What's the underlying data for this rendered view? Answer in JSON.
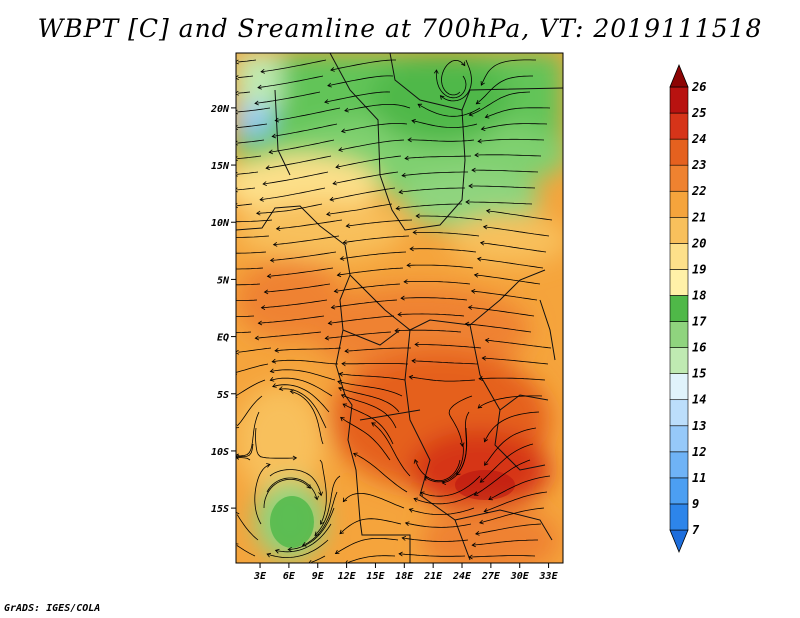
{
  "title": "WBPT [C] and Sreamline at 700hPa, VT: 2019111518",
  "credit": "GrADS: IGES/COLA",
  "map": {
    "lon_labels": [
      "3E",
      "6E",
      "9E",
      "12E",
      "15E",
      "18E",
      "21E",
      "24E",
      "27E",
      "30E",
      "33E"
    ],
    "lon_values": [
      3,
      6,
      9,
      12,
      15,
      18,
      21,
      24,
      27,
      30,
      33
    ],
    "lat_labels": [
      "20N",
      "15N",
      "10N",
      "5N",
      "EQ",
      "5S",
      "10S",
      "15S"
    ],
    "lat_values": [
      20,
      15,
      10,
      5,
      0,
      -5,
      -10,
      -15
    ],
    "lon_range": [
      0.5,
      34.5
    ],
    "lat_range": [
      -19.8,
      24.8
    ]
  },
  "colorbar": {
    "labels": [
      "7",
      "9",
      "11",
      "12",
      "13",
      "14",
      "15",
      "16",
      "17",
      "18",
      "19",
      "20",
      "21",
      "22",
      "23",
      "24",
      "25",
      "26"
    ],
    "colors": [
      "#1e6edc",
      "#2d85ea",
      "#4c9ff2",
      "#6fb3f6",
      "#96c9f9",
      "#bcdefb",
      "#e0f3fb",
      "#bfeab2",
      "#8fd47e",
      "#4fb848",
      "#fff1a8",
      "#fde08a",
      "#f8c05c",
      "#f5a43c",
      "#ef8230",
      "#e5611f",
      "#d63419",
      "#b81210",
      "#8c0404"
    ]
  },
  "colors": {
    "map_border": "#000000",
    "streamline": "#000000",
    "land_border": "#111111"
  }
}
